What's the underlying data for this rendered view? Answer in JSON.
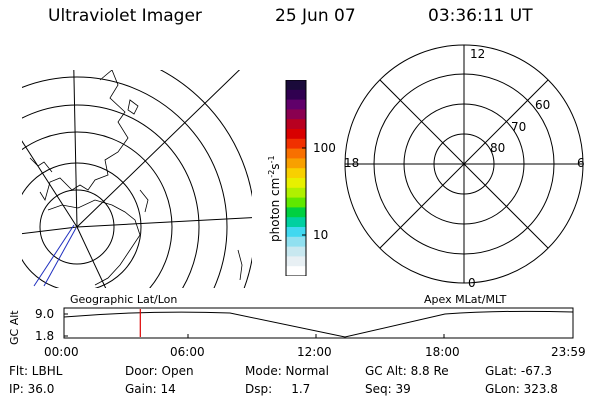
{
  "header": {
    "instrument": "Ultraviolet Imager",
    "date": "25 Jun 07",
    "time": "03:36:11 UT"
  },
  "colorbar": {
    "label": "photon cm",
    "label_sup1": "-2",
    "label_mid": "s",
    "label_sup2": "-1",
    "tick_100": "100",
    "tick_10": "10",
    "colors": [
      "#1a0a3a",
      "#300050",
      "#60006a",
      "#8a0050",
      "#b80020",
      "#d80000",
      "#f03000",
      "#f87000",
      "#f8a000",
      "#f8d000",
      "#e8f000",
      "#b0f000",
      "#60e800",
      "#00d040",
      "#00d0a0",
      "#40d8f0",
      "#90e0f0",
      "#c8e8f0",
      "#e8f0f4",
      "#ffffff"
    ]
  },
  "polar_right": {
    "label_12": "12",
    "label_18": "18",
    "label_6": "6",
    "label_0": "0",
    "label_60": "60",
    "label_70": "70",
    "label_80": "80"
  },
  "panel_labels": {
    "left": "Geographic Lat/Lon",
    "right": "Apex  MLat/MLT"
  },
  "altitude_plot": {
    "ylabel": "GC Alt",
    "ytick_top": "9.0",
    "ytick_bottom": "1.8",
    "xticks": [
      "00:00",
      "06:00",
      "12:00",
      "18:00",
      "23:59"
    ],
    "marker_color": "#dd0000",
    "marker_hour": 3.6
  },
  "info": {
    "flt": "Flt: LBHL",
    "ip": "IP: 36.0",
    "door": "Door: Open",
    "gain": "Gain: 14",
    "mode": "Mode: Normal",
    "dsp": "Dsp:     1.7",
    "gcalt": "GC Alt: 8.8 Re",
    "seq": "Seq: 39",
    "glat": "GLat: -67.3",
    "glon": "GLon: 323.8"
  }
}
